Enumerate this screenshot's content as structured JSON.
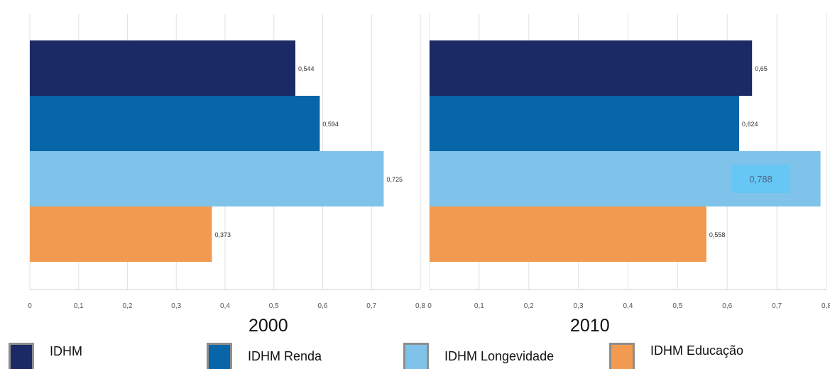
{
  "chart_data": [
    {
      "type": "bar",
      "orientation": "horizontal",
      "title": "2000",
      "categories": [
        "IDHM",
        "IDHM Renda",
        "IDHM Longevidade",
        "IDHM Educação"
      ],
      "values": [
        0.544,
        0.594,
        0.725,
        0.373
      ],
      "value_labels": [
        "0,544",
        "0,594",
        "0,725",
        "0,373"
      ],
      "xlim": [
        0,
        0.8
      ],
      "xticks": [
        "0",
        "0,1",
        "0,2",
        "0,3",
        "0,4",
        "0,5",
        "0,6",
        "0,7",
        "0,8"
      ],
      "grid": true
    },
    {
      "type": "bar",
      "orientation": "horizontal",
      "title": "2010",
      "categories": [
        "IDHM",
        "IDHM Renda",
        "IDHM Longevidade",
        "IDHM Educação"
      ],
      "values": [
        0.65,
        0.624,
        0.788,
        0.558
      ],
      "value_labels": [
        "0,65",
        "0,624",
        "0,788",
        "0,558"
      ],
      "xlim": [
        0,
        0.8
      ],
      "xticks": [
        "0",
        "0,1",
        "0,2",
        "0,3",
        "0,4",
        "0,5",
        "0,6",
        "0,7",
        "0,8"
      ],
      "grid": true
    }
  ],
  "legend": [
    {
      "label": "IDHM",
      "color": "#1b2a64"
    },
    {
      "label": "IDHM Renda",
      "color": "#0765a8"
    },
    {
      "label": "IDHM Longevidade",
      "color": "#7fc3ea"
    },
    {
      "label": "IDHM Educação",
      "color": "#f29b50"
    }
  ],
  "highlight_color": "#66c6f4"
}
